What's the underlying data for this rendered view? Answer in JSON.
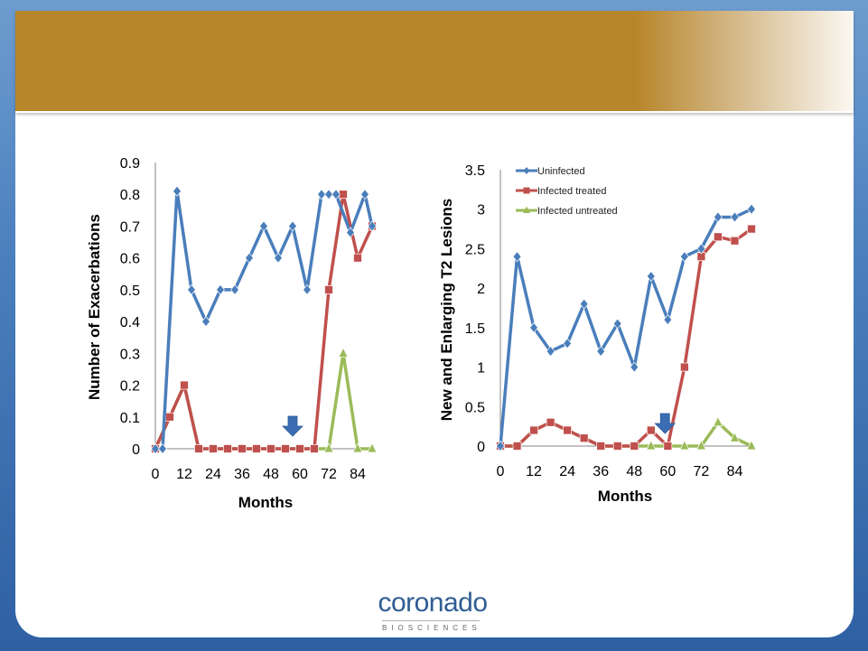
{
  "colors": {
    "uninfected": "#4a7ebb",
    "infected_treated": "#c0504d",
    "infected_untreated": "#9bbb59",
    "arrow": "#3c6db3"
  },
  "logo": {
    "word": "coronado",
    "tagline": "BIOSCIENCES"
  },
  "chart_data": [
    {
      "type": "line",
      "title": "",
      "xlabel": "Months",
      "ylabel": "Number of Exacerbations",
      "x": [
        0,
        6,
        12,
        18,
        24,
        30,
        36,
        42,
        48,
        54,
        60,
        66,
        72,
        78,
        84,
        90
      ],
      "xticks": [
        "0",
        "12",
        "24",
        "36",
        "48",
        "60",
        "72",
        "84"
      ],
      "xtick_values": [
        0,
        12,
        24,
        36,
        48,
        60,
        72,
        84
      ],
      "yticks": [
        "0",
        "0.1",
        "0.2",
        "0.3",
        "0.4",
        "0.5",
        "0.6",
        "0.7",
        "0.8",
        "0.9"
      ],
      "ylim": [
        0,
        0.9
      ],
      "xlim": [
        0,
        90
      ],
      "legend": "none",
      "annotation": "down-arrow at month 57",
      "series": [
        {
          "key": "uninfected",
          "marker": "diamond",
          "x": [
            0,
            3,
            9,
            15,
            21,
            27,
            33,
            39,
            45,
            51,
            57,
            63,
            69,
            72,
            75,
            81,
            87,
            90
          ],
          "values": [
            0,
            0,
            0.81,
            0.5,
            0.4,
            0.5,
            0.5,
            0.6,
            0.7,
            0.6,
            0.7,
            0.5,
            0.8,
            0.8,
            0.8,
            0.68,
            0.8,
            0.7
          ]
        },
        {
          "key": "infected_treated",
          "marker": "square",
          "x": [
            0,
            6,
            12,
            18,
            24,
            30,
            36,
            42,
            48,
            54,
            60,
            66,
            72,
            78,
            84,
            90
          ],
          "values": [
            0,
            0.1,
            0.2,
            0,
            0,
            0,
            0,
            0,
            0,
            0,
            0,
            0,
            0.5,
            0.8,
            0.6,
            0.7
          ]
        },
        {
          "key": "infected_untreated",
          "marker": "triangle",
          "x": [
            0,
            6,
            12,
            18,
            24,
            30,
            36,
            42,
            48,
            54,
            60,
            66,
            72,
            78,
            84,
            90
          ],
          "values": [
            0,
            0.1,
            0.2,
            0,
            0,
            0,
            0,
            0,
            0,
            0,
            0,
            0,
            0,
            0.3,
            0,
            0
          ]
        }
      ]
    },
    {
      "type": "line",
      "title": "",
      "xlabel": "Months",
      "ylabel": "New and Enlarging T2 Lesions",
      "xticks": [
        "0",
        "12",
        "24",
        "36",
        "48",
        "60",
        "72",
        "84"
      ],
      "xtick_values": [
        0,
        12,
        24,
        36,
        48,
        60,
        72,
        84
      ],
      "yticks": [
        "0",
        "0.5",
        "1",
        "1.5",
        "2",
        "2.5",
        "3",
        "3.5"
      ],
      "ylim": [
        0,
        3.5
      ],
      "xlim": [
        0,
        90
      ],
      "legend": "top-left",
      "annotation": "down-arrow at month 59",
      "series": [
        {
          "key": "uninfected",
          "name": "Uninfected",
          "marker": "diamond",
          "x": [
            0,
            6,
            12,
            18,
            24,
            30,
            36,
            42,
            48,
            54,
            60,
            66,
            72,
            78,
            84,
            90
          ],
          "values": [
            0,
            2.4,
            1.5,
            1.2,
            1.3,
            1.8,
            1.2,
            1.55,
            1.0,
            2.15,
            1.6,
            2.4,
            2.5,
            2.9,
            2.9,
            3.0
          ]
        },
        {
          "key": "infected_treated",
          "name": "Infected treated",
          "marker": "square",
          "x": [
            0,
            6,
            12,
            18,
            24,
            30,
            36,
            42,
            48,
            54,
            60,
            66,
            72,
            78,
            84,
            90
          ],
          "values": [
            0,
            0,
            0.2,
            0.3,
            0.2,
            0.1,
            0,
            0,
            0,
            0.2,
            0,
            1.0,
            2.4,
            2.65,
            2.6,
            2.75
          ]
        },
        {
          "key": "infected_untreated",
          "name": "Infected untreated",
          "marker": "triangle",
          "x": [
            0,
            6,
            12,
            18,
            24,
            30,
            36,
            42,
            48,
            54,
            60,
            66,
            72,
            78,
            84,
            90
          ],
          "values": [
            0,
            0,
            0.2,
            0.3,
            0.2,
            0.1,
            0,
            0,
            0,
            0,
            0,
            0,
            0,
            0.3,
            0.1,
            0
          ]
        }
      ]
    }
  ]
}
